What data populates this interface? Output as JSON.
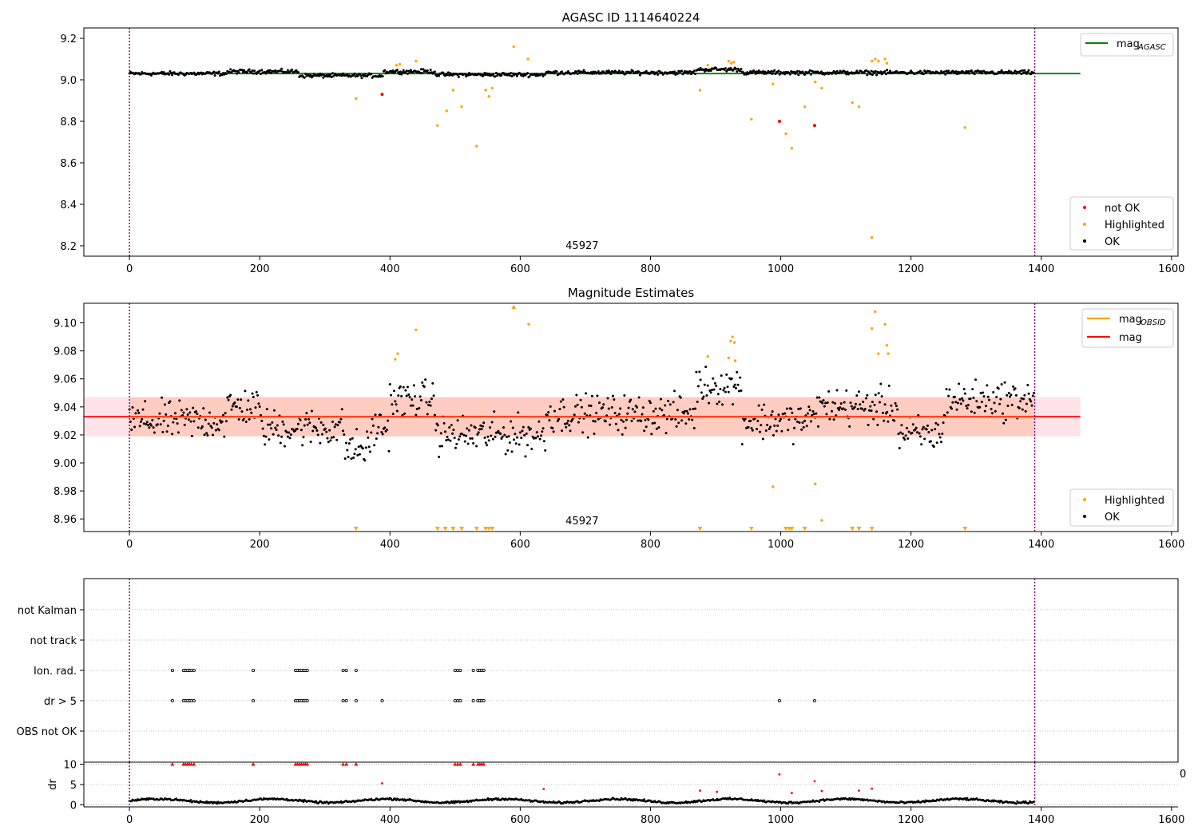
{
  "figure": {
    "top_title": "AGASC ID 1114640224",
    "mid_title": "Magnitude Estimates"
  },
  "colors": {
    "ok": "#000000",
    "highlighted": "#ffa500",
    "not_ok": "#ff0000",
    "mag_agasc": "#008000",
    "mag_obsid": "#ffa500",
    "mag": "#ff0000",
    "boundary": "#800080",
    "band_outer": "#ffc0cb",
    "band_inner": "#ffa07a"
  },
  "chart_data": [
    {
      "type": "scatter",
      "title": "AGASC ID 1114640224",
      "xlim": [
        -70,
        1610
      ],
      "ylim": [
        8.15,
        9.25
      ],
      "xticks": [
        "0",
        "200",
        "400",
        "600",
        "800",
        "1000",
        "1200",
        "1400",
        "1600"
      ],
      "yticks": [
        "8.2",
        "8.4",
        "8.6",
        "8.8",
        "9.0",
        "9.2"
      ],
      "obsid_label": "45927",
      "obsid_label_x": 695,
      "boundaries": [
        0,
        1390
      ],
      "reference_lines": [
        {
          "name": "mag",
          "subscript": "AGASC",
          "y": 9.03,
          "x_range": [
            0,
            1460
          ]
        }
      ],
      "legend_upper": [
        {
          "label": "mag",
          "subscript": "AGASC",
          "kind": "line",
          "color_key": "mag_agasc"
        }
      ],
      "legend_lower": [
        {
          "label": "not OK",
          "kind": "marker",
          "color_key": "not_ok"
        },
        {
          "label": "Highlighted",
          "kind": "marker",
          "color_key": "highlighted"
        },
        {
          "label": "OK",
          "kind": "marker",
          "color_key": "ok"
        }
      ],
      "ok_series": {
        "x_range": [
          0,
          1390
        ],
        "base": 9.03,
        "segments": [
          [
            0,
            150,
            9.03
          ],
          [
            150,
            260,
            9.04
          ],
          [
            260,
            390,
            9.02
          ],
          [
            390,
            470,
            9.04
          ],
          [
            470,
            640,
            9.025
          ],
          [
            640,
            870,
            9.035
          ],
          [
            870,
            940,
            9.05
          ],
          [
            940,
            1390,
            9.035
          ]
        ]
      },
      "highlighted": [
        {
          "x": 348,
          "y": 8.91
        },
        {
          "x": 410,
          "y": 9.07
        },
        {
          "x": 415,
          "y": 9.075
        },
        {
          "x": 440,
          "y": 9.09
        },
        {
          "x": 473,
          "y": 8.78
        },
        {
          "x": 487,
          "y": 8.85
        },
        {
          "x": 497,
          "y": 8.95
        },
        {
          "x": 510,
          "y": 8.87
        },
        {
          "x": 533,
          "y": 8.68
        },
        {
          "x": 547,
          "y": 8.95
        },
        {
          "x": 552,
          "y": 8.92
        },
        {
          "x": 557,
          "y": 8.96
        },
        {
          "x": 590,
          "y": 9.16
        },
        {
          "x": 612,
          "y": 9.1
        },
        {
          "x": 876,
          "y": 8.95
        },
        {
          "x": 888,
          "y": 9.07
        },
        {
          "x": 920,
          "y": 9.09
        },
        {
          "x": 924,
          "y": 9.08
        },
        {
          "x": 928,
          "y": 9.085
        },
        {
          "x": 955,
          "y": 8.81
        },
        {
          "x": 988,
          "y": 8.98
        },
        {
          "x": 1008,
          "y": 8.74
        },
        {
          "x": 1017,
          "y": 8.67
        },
        {
          "x": 1037,
          "y": 8.87
        },
        {
          "x": 1053,
          "y": 8.99
        },
        {
          "x": 1063,
          "y": 8.96
        },
        {
          "x": 1110,
          "y": 8.89
        },
        {
          "x": 1120,
          "y": 8.87
        },
        {
          "x": 1140,
          "y": 8.24
        },
        {
          "x": 1140,
          "y": 9.09
        },
        {
          "x": 1145,
          "y": 9.1
        },
        {
          "x": 1150,
          "y": 9.09
        },
        {
          "x": 1160,
          "y": 9.1
        },
        {
          "x": 1163,
          "y": 9.08
        },
        {
          "x": 1283,
          "y": 8.77
        }
      ],
      "not_ok": [
        {
          "x": 388,
          "y": 8.93
        },
        {
          "x": 998,
          "y": 8.8
        },
        {
          "x": 1052,
          "y": 8.78
        }
      ]
    },
    {
      "type": "scatter",
      "title": "Magnitude Estimates",
      "xlim": [
        -70,
        1610
      ],
      "ylim": [
        8.951,
        9.114
      ],
      "xticks": [
        "0",
        "200",
        "400",
        "600",
        "800",
        "1000",
        "1200",
        "1400",
        "1600"
      ],
      "yticks": [
        "8.96",
        "8.98",
        "9.00",
        "9.02",
        "9.04",
        "9.06",
        "9.08",
        "9.10"
      ],
      "obsid_label": "45927",
      "obsid_label_x": 695,
      "boundaries": [
        0,
        1390
      ],
      "mag_line": {
        "name": "mag",
        "y": 9.033,
        "x_range": [
          -70,
          1460
        ]
      },
      "mag_obsid_line": {
        "name": "mag",
        "subscript": "OBSID",
        "y": 9.033,
        "x_range": [
          0,
          1390
        ]
      },
      "band_outer": {
        "y_range": [
          9.019,
          9.047
        ],
        "x_range": [
          -70,
          1460
        ]
      },
      "band_inner": {
        "y_range": [
          9.019,
          9.047
        ],
        "x_range": [
          0,
          1390
        ]
      },
      "legend_upper": [
        {
          "label": "mag",
          "subscript": "OBSID",
          "kind": "line",
          "color_key": "mag_obsid"
        },
        {
          "label": "mag",
          "kind": "line",
          "color_key": "mag"
        }
      ],
      "legend_lower": [
        {
          "label": "Highlighted",
          "kind": "marker",
          "color_key": "highlighted"
        },
        {
          "label": "OK",
          "kind": "marker",
          "color_key": "ok"
        }
      ],
      "ok_series": {
        "x_range": [
          0,
          1390
        ],
        "segments": [
          [
            0,
            150,
            9.03
          ],
          [
            150,
            200,
            9.04
          ],
          [
            200,
            330,
            9.025
          ],
          [
            330,
            370,
            9.01
          ],
          [
            370,
            400,
            9.025
          ],
          [
            400,
            470,
            9.045
          ],
          [
            470,
            640,
            9.02
          ],
          [
            640,
            870,
            9.035
          ],
          [
            870,
            940,
            9.055
          ],
          [
            940,
            1050,
            9.03
          ],
          [
            1050,
            1180,
            9.04
          ],
          [
            1180,
            1250,
            9.02
          ],
          [
            1250,
            1390,
            9.045
          ]
        ]
      },
      "highlighted": [
        {
          "x": 408,
          "y": 9.074
        },
        {
          "x": 412,
          "y": 9.078
        },
        {
          "x": 440,
          "y": 9.095
        },
        {
          "x": 613,
          "y": 9.099
        },
        {
          "x": 888,
          "y": 9.076
        },
        {
          "x": 920,
          "y": 9.075
        },
        {
          "x": 923,
          "y": 9.087
        },
        {
          "x": 926,
          "y": 9.09
        },
        {
          "x": 929,
          "y": 9.086
        },
        {
          "x": 930,
          "y": 9.073
        },
        {
          "x": 988,
          "y": 8.983
        },
        {
          "x": 1053,
          "y": 8.985
        },
        {
          "x": 1063,
          "y": 8.959
        },
        {
          "x": 1140,
          "y": 9.096
        },
        {
          "x": 1145,
          "y": 9.108
        },
        {
          "x": 1150,
          "y": 9.078
        },
        {
          "x": 1160,
          "y": 9.099
        },
        {
          "x": 1163,
          "y": 9.084
        },
        {
          "x": 1165,
          "y": 9.078
        }
      ],
      "clipped_low": [
        348,
        473,
        485,
        497,
        510,
        533,
        547,
        552,
        557,
        876,
        955,
        1008,
        1013,
        1017,
        1037,
        1110,
        1120,
        1140,
        1283
      ],
      "clipped_high": [
        590
      ]
    },
    {
      "type": "scatter",
      "xlim": [
        -70,
        1610
      ],
      "categories": [
        "not Kalman",
        "not track",
        "Ion. rad.",
        "dr > 5",
        "OBS not OK"
      ],
      "boundaries": [
        0,
        1390
      ],
      "flags": {
        "Ion. rad.": [
          66,
          83,
          86,
          89,
          92,
          95,
          99,
          190,
          255,
          258,
          261,
          264,
          267,
          270,
          273,
          328,
          333,
          348,
          500,
          504,
          508,
          528,
          535,
          538,
          541,
          544
        ],
        "dr > 5": [
          66,
          83,
          86,
          89,
          92,
          95,
          99,
          190,
          255,
          258,
          261,
          264,
          267,
          270,
          273,
          328,
          333,
          348,
          388,
          500,
          504,
          508,
          528,
          535,
          538,
          541,
          544,
          998,
          1052
        ]
      }
    },
    {
      "type": "scatter",
      "ylabel": "dr",
      "xlim": [
        -70,
        1610
      ],
      "ylim": [
        -0.5,
        10.5
      ],
      "xticks": [
        "0",
        "200",
        "400",
        "600",
        "800",
        "1000",
        "1200",
        "1400",
        "1600"
      ],
      "yticks": [
        "0",
        "5",
        "10"
      ],
      "right_edge_fragment": "0",
      "boundaries": [
        0,
        1390
      ],
      "dr_base": {
        "x_range": [
          0,
          1390
        ],
        "level": 1.0
      },
      "clipped_at_10": [
        66,
        83,
        86,
        89,
        92,
        95,
        99,
        190,
        255,
        258,
        261,
        264,
        267,
        270,
        273,
        328,
        333,
        348,
        500,
        504,
        508,
        528,
        535,
        538,
        541,
        544
      ],
      "red_points": [
        {
          "x": 388,
          "y": 5.3
        },
        {
          "x": 998,
          "y": 7.5
        },
        {
          "x": 1052,
          "y": 5.8
        },
        {
          "x": 636,
          "y": 3.9
        },
        {
          "x": 876,
          "y": 3.5
        },
        {
          "x": 1017,
          "y": 2.9
        },
        {
          "x": 1063,
          "y": 3.4
        },
        {
          "x": 1120,
          "y": 3.5
        },
        {
          "x": 1140,
          "y": 4.0
        },
        {
          "x": 902,
          "y": 3.2
        }
      ]
    }
  ]
}
